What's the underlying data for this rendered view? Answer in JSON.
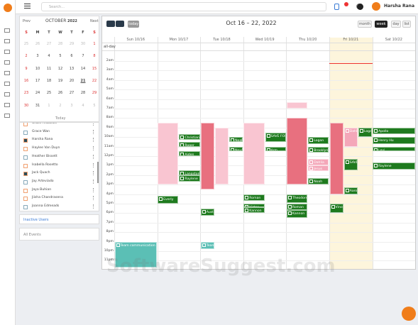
{
  "search_placeholder": "Search...",
  "user_name": "Harsha Rana",
  "mini_calendar": {
    "prev": "Prev",
    "month": "OCTOBER",
    "year": "2022",
    "next": "Next",
    "weekdays": [
      "S",
      "M",
      "T",
      "W",
      "T",
      "F",
      "S"
    ],
    "weeks": [
      [
        25,
        26,
        27,
        28,
        29,
        30,
        1
      ],
      [
        2,
        3,
        4,
        5,
        6,
        7,
        8
      ],
      [
        9,
        10,
        11,
        12,
        13,
        14,
        15
      ],
      [
        16,
        17,
        18,
        19,
        20,
        21,
        22
      ],
      [
        23,
        24,
        25,
        26,
        27,
        28,
        29
      ],
      [
        30,
        31,
        1,
        2,
        3,
        4,
        5
      ]
    ],
    "today": "Today"
  },
  "users": [
    "Grace Arbuckle",
    "Grace Wan",
    "Harsha Rana",
    "Haylee Van Duyn",
    "Heather Bissett",
    "Isabella Rosetto",
    "Jack Quach",
    "Jay Arteviado",
    "Jaya Buhian",
    "Jiisha Chandrasena",
    "Joanna Edmeads"
  ],
  "inactive_users": "Inactive Users",
  "all_events": "All Events",
  "calendar": {
    "title": "Oct 16 – 22, 2022",
    "today": "today",
    "views": [
      "month",
      "week",
      "day",
      "list"
    ],
    "all_day": "all-day",
    "days": [
      "Sun 10/16",
      "Mon 10/17",
      "Tue 10/18",
      "Wed 10/19",
      "Thu 10/20",
      "Fri 10/21",
      "Sat 10/22"
    ],
    "hours": [
      "2am",
      "3am",
      "4am",
      "5am",
      "6am",
      "7am",
      "8am",
      "9am",
      "10am",
      "11am",
      "12pm",
      "1pm",
      "2pm",
      "3pm",
      "4pm",
      "5pm",
      "6pm",
      "7pm",
      "8pm",
      "9pm",
      "10pm",
      "11pm"
    ],
    "events": [
      {
        "day": 0,
        "start": 21,
        "end": 23.7,
        "title": "Team communication",
        "color": "#5bbfb5"
      },
      {
        "day": 1,
        "start": 8.5,
        "end": 15,
        "color": "#f9c5d1"
      },
      {
        "day": 1,
        "start": 9.7,
        "end": 10.3,
        "title": "Christian",
        "color": "#1e7a1e"
      },
      {
        "day": 1,
        "start": 10.5,
        "end": 11,
        "title": "Roger",
        "color": "#1e7a1e"
      },
      {
        "day": 1,
        "start": 11.5,
        "end": 12,
        "title": "Aiden",
        "color": "#1e7a1e"
      },
      {
        "day": 1,
        "start": 13.5,
        "end": 14,
        "title": "Langston",
        "color": "#1e7a1e"
      },
      {
        "day": 1,
        "start": 14,
        "end": 14.7,
        "title": "Raylene",
        "color": "#1e7a1e"
      },
      {
        "day": 1,
        "start": 16.2,
        "end": 17,
        "title": "Everly",
        "color": "#1e7a1e"
      },
      {
        "day": 2,
        "start": 8.5,
        "end": 15.5,
        "color": "#e8707f"
      },
      {
        "day": 2,
        "start": 9,
        "end": 15,
        "color": "#f9c5d1"
      },
      {
        "day": 2,
        "start": 10,
        "end": 10.5,
        "title": "Noah",
        "color": "#1e7a1e"
      },
      {
        "day": 2,
        "start": 11,
        "end": 11.5,
        "title": "Nova",
        "color": "#1e7a1e"
      },
      {
        "day": 2,
        "start": 17.5,
        "end": 18.3,
        "title": "Austin",
        "color": "#1e7a1e"
      },
      {
        "day": 2,
        "start": 21,
        "end": 21.8,
        "title": "Team communication",
        "color": "#5bbfb5"
      },
      {
        "day": 3,
        "start": 8.5,
        "end": 15,
        "color": "#f9c5d1"
      },
      {
        "day": 3,
        "start": 9.5,
        "end": 10.5,
        "title": "SAVE FOR IRC",
        "color": "#1e7a1e"
      },
      {
        "day": 3,
        "start": 11,
        "end": 11.5,
        "title": "Arm",
        "color": "#1e7a1e"
      },
      {
        "day": 3,
        "start": 16,
        "end": 16.7,
        "title": "Roman",
        "color": "#1e7a1e"
      },
      {
        "day": 3,
        "start": 17,
        "end": 17.4,
        "title": "Victor",
        "color": "#1e7a1e"
      },
      {
        "day": 3,
        "start": 17.4,
        "end": 18,
        "title": "Kannon",
        "color": "#1e7a1e"
      },
      {
        "day": 4,
        "start": 6.3,
        "end": 7,
        "color": "#f9c5d1"
      },
      {
        "day": 4,
        "start": 8,
        "end": 15,
        "color": "#e8707f"
      },
      {
        "day": 4,
        "start": 10,
        "end": 10.7,
        "title": "Logan",
        "color": "#1e7a1e"
      },
      {
        "day": 4,
        "start": 11,
        "end": 11.6,
        "title": "Brooklyn",
        "color": "#1e7a1e"
      },
      {
        "day": 4,
        "start": 12.3,
        "end": 13,
        "title": "Dahlia",
        "color": "#f4a7b9"
      },
      {
        "day": 4,
        "start": 13,
        "end": 13.6,
        "title": "Jesus",
        "color": "#f4a7b9"
      },
      {
        "day": 4,
        "start": 14.3,
        "end": 15,
        "title": "Noah",
        "color": "#1e7a1e"
      },
      {
        "day": 4,
        "start": 16,
        "end": 16.9,
        "title": "Theodore",
        "color": "#1e7a1e"
      },
      {
        "day": 4,
        "start": 17,
        "end": 17.7,
        "title": "Roman",
        "color": "#1e7a1e"
      },
      {
        "day": 4,
        "start": 17.7,
        "end": 18.5,
        "title": "Kannon",
        "color": "#1e7a1e"
      },
      {
        "day": 5,
        "start": 8.5,
        "end": 16,
        "color": "#e8707f"
      },
      {
        "day": 5,
        "start": 9,
        "end": 11,
        "title": "Dahlia",
        "color": "#f4a7b9"
      },
      {
        "day": 5,
        "start": 9,
        "end": 10,
        "title": "Logan",
        "color": "#1e7a1e"
      },
      {
        "day": 5,
        "start": 12.3,
        "end": 13.5,
        "title": "SAVE IRC",
        "color": "#1e7a1e"
      },
      {
        "day": 5,
        "start": 15.3,
        "end": 16,
        "title": "Aaron",
        "color": "#1e7a1e"
      },
      {
        "day": 5,
        "start": 17,
        "end": 18,
        "title": "Vincent",
        "color": "#1e7a1e"
      },
      {
        "day": 6,
        "start": 9,
        "end": 9.7,
        "title": "Apollo",
        "color": "#1e7a1e"
      },
      {
        "day": 6,
        "start": 10,
        "end": 10.7,
        "title": "Henry Hu",
        "color": "#1e7a1e"
      },
      {
        "day": 6,
        "start": 11,
        "end": 11.5,
        "title": "Levi",
        "color": "#1e7a1e"
      },
      {
        "day": 6,
        "start": 12.7,
        "end": 13.4,
        "title": "Raylene",
        "color": "#1e7a1e"
      }
    ]
  },
  "watermark": "SoftwareSuggest.com"
}
